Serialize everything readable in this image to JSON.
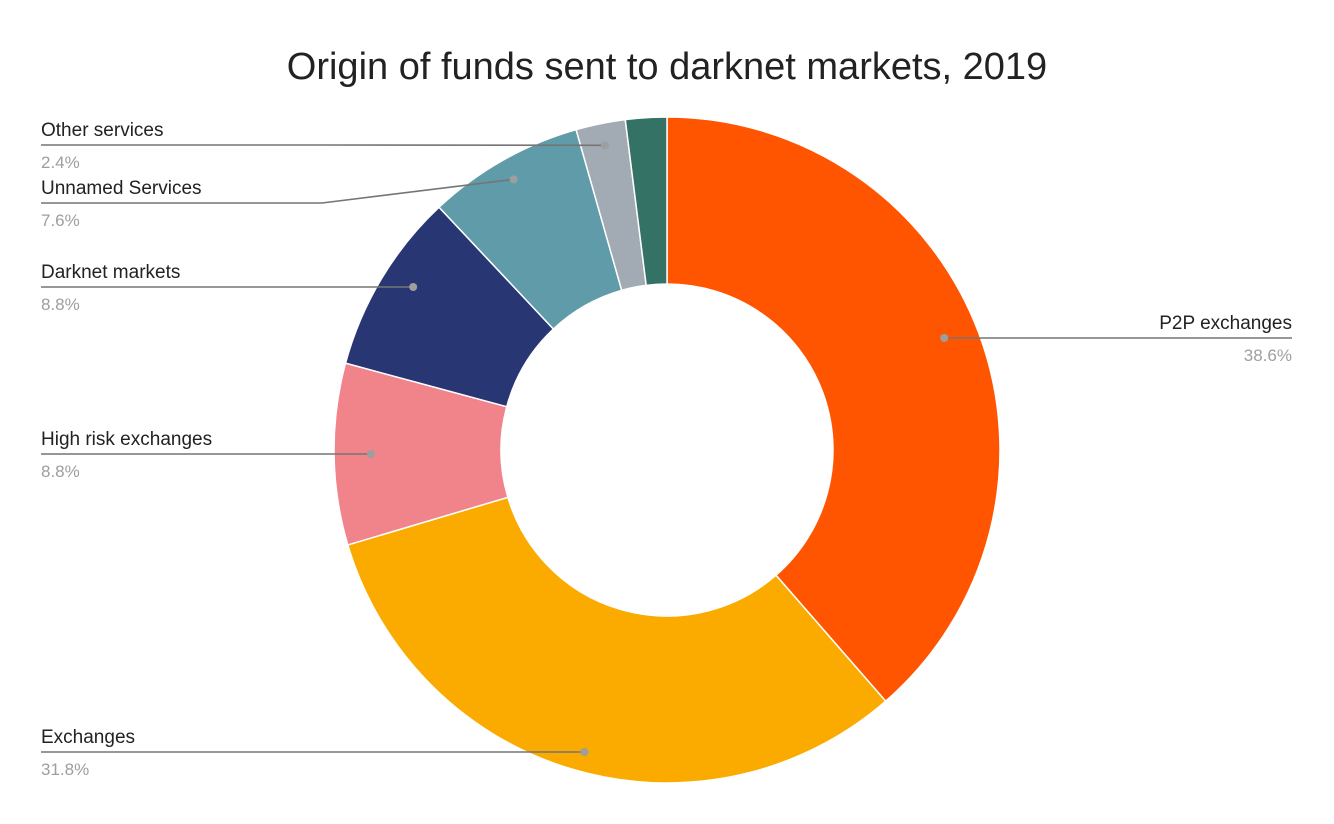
{
  "chart_data": {
    "type": "pie",
    "donut": true,
    "title": "Origin of funds sent to darknet markets, 2019",
    "legend": "none",
    "slices": [
      {
        "name": "P2P exchanges",
        "value": 38.6,
        "label": "38.6%",
        "color": "#ff5400"
      },
      {
        "name": "Exchanges",
        "value": 31.8,
        "label": "31.8%",
        "color": "#fbab00"
      },
      {
        "name": "High risk exchanges",
        "value": 8.8,
        "label": "8.8%",
        "color": "#f1838a"
      },
      {
        "name": "Darknet markets",
        "value": 8.8,
        "label": "8.8%",
        "color": "#283673"
      },
      {
        "name": "Unnamed Services",
        "value": 7.6,
        "label": "7.6%",
        "color": "#5f9ba8"
      },
      {
        "name": "Other services",
        "value": 2.4,
        "label": "2.4%",
        "color": "#a2abb3"
      },
      {
        "name": "",
        "value": 2.0,
        "label": "",
        "color": "#347265"
      }
    ]
  }
}
